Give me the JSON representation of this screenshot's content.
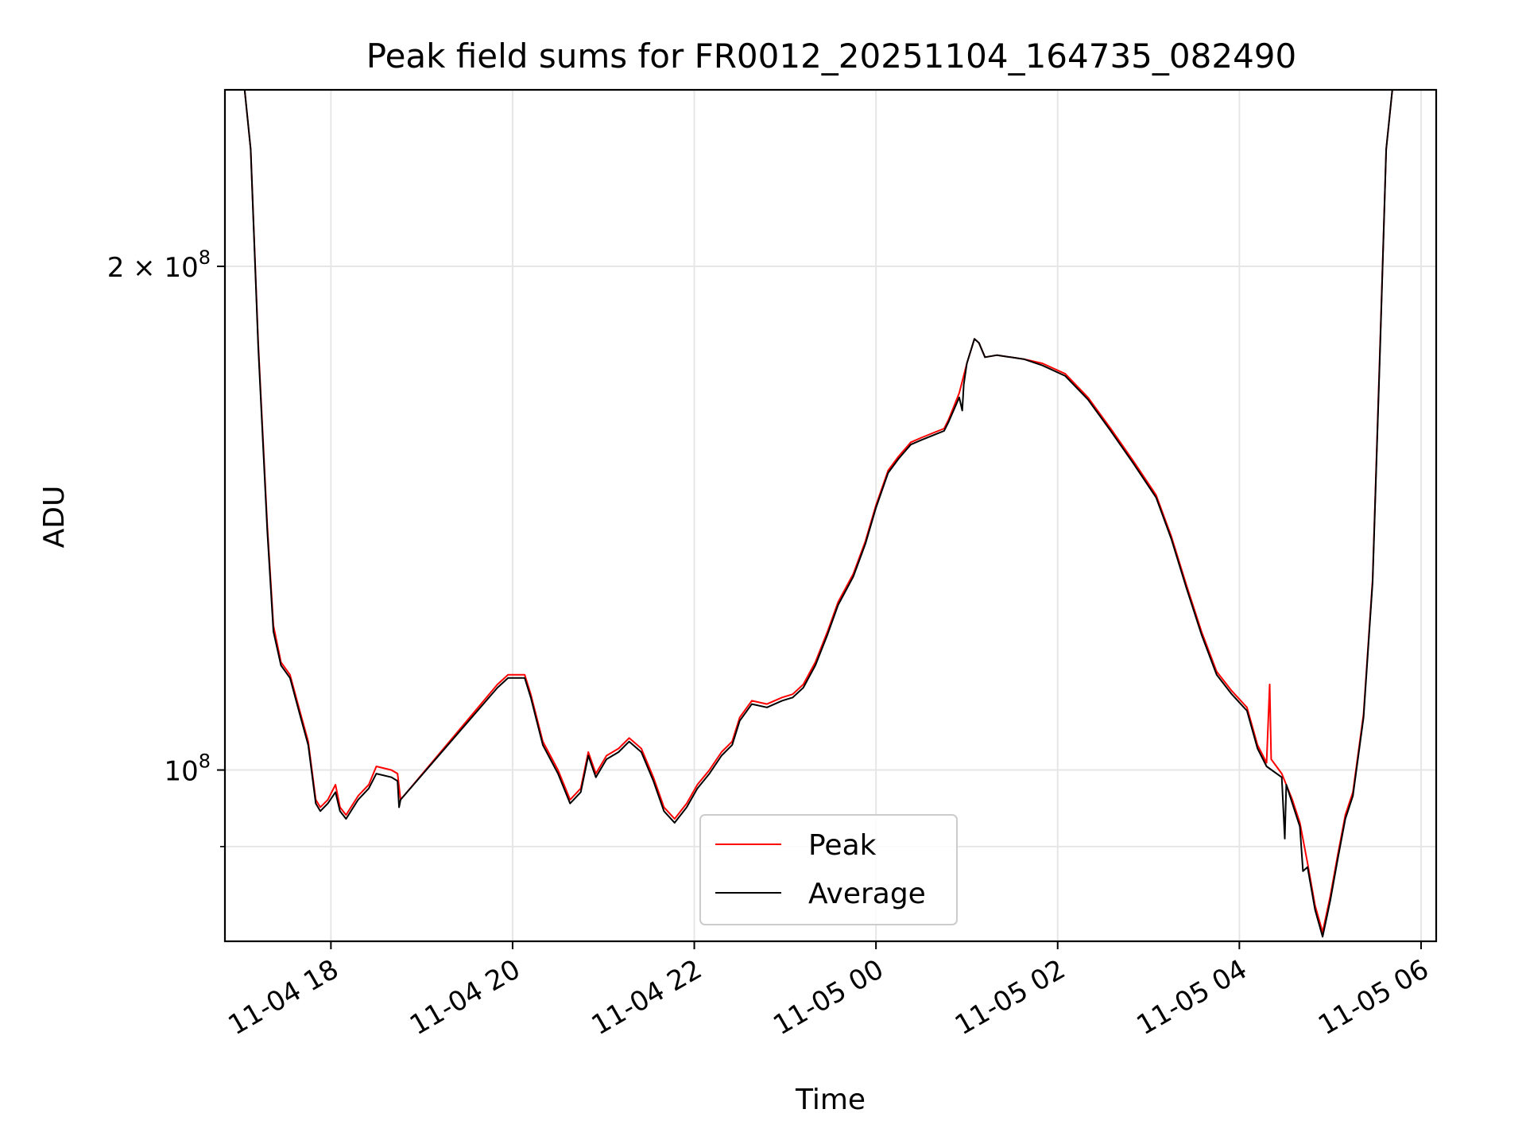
{
  "chart_data": {
    "type": "line",
    "title": "Peak field sums for FR0012_20251104_164735_082490",
    "xlabel": "Time",
    "ylabel": "ADU",
    "y_scale": "log",
    "ylim": [
      79000000,
      255000000
    ],
    "xlim": [
      "2025-11-04 16:50",
      "2025-11-05 06:10"
    ],
    "grid": true,
    "legend_position": "lower-center",
    "x_ticks": [
      {
        "t": "2025-11-04 18:00",
        "label": "11-04 18"
      },
      {
        "t": "2025-11-04 20:00",
        "label": "11-04 20"
      },
      {
        "t": "2025-11-04 22:00",
        "label": "11-04 22"
      },
      {
        "t": "2025-11-05 00:00",
        "label": "11-05 00"
      },
      {
        "t": "2025-11-05 02:00",
        "label": "11-05 02"
      },
      {
        "t": "2025-11-05 04:00",
        "label": "11-05 04"
      },
      {
        "t": "2025-11-05 06:00",
        "label": "11-05 06"
      }
    ],
    "y_ticks_major": [
      {
        "v": 100000000,
        "label_base": "10",
        "label_exp": "8"
      },
      {
        "v": 200000000,
        "label_base": "2 × 10",
        "label_exp": "8"
      }
    ],
    "y_ticks_minor": [
      90000000
    ],
    "series": [
      {
        "name": "Peak",
        "color": "#ff0000",
        "points": [
          [
            "2025-11-04 16:50",
            255000000
          ],
          [
            "2025-11-04 17:03",
            255000000
          ],
          [
            "2025-11-04 17:07",
            235000000
          ],
          [
            "2025-11-04 17:12",
            180000000
          ],
          [
            "2025-11-04 17:18",
            140000000
          ],
          [
            "2025-11-04 17:22",
            122000000
          ],
          [
            "2025-11-04 17:27",
            116000000
          ],
          [
            "2025-11-04 17:33",
            114000000
          ],
          [
            "2025-11-04 17:40",
            108000000
          ],
          [
            "2025-11-04 17:45",
            104000000
          ],
          [
            "2025-11-04 17:50",
            96000000
          ],
          [
            "2025-11-04 17:53",
            95000000
          ],
          [
            "2025-11-04 17:58",
            96000000
          ],
          [
            "2025-11-04 18:03",
            98000000
          ],
          [
            "2025-11-04 18:06",
            95000000
          ],
          [
            "2025-11-04 18:10",
            94000000
          ],
          [
            "2025-11-04 18:18",
            96500000
          ],
          [
            "2025-11-04 18:25",
            98000000
          ],
          [
            "2025-11-04 18:30",
            100500000
          ],
          [
            "2025-11-04 18:40",
            100000000
          ],
          [
            "2025-11-04 18:44",
            99500000
          ],
          [
            "2025-11-04 18:46",
            96000000
          ],
          [
            "2025-11-04 19:50",
            112500000
          ],
          [
            "2025-11-04 19:57",
            114000000
          ],
          [
            "2025-11-04 20:08",
            114000000
          ],
          [
            "2025-11-04 20:12",
            111000000
          ],
          [
            "2025-11-04 20:20",
            104000000
          ],
          [
            "2025-11-04 20:30",
            100000000
          ],
          [
            "2025-11-04 20:38",
            96000000
          ],
          [
            "2025-11-04 20:45",
            97500000
          ],
          [
            "2025-11-04 20:50",
            102500000
          ],
          [
            "2025-11-04 20:55",
            99500000
          ],
          [
            "2025-11-04 21:02",
            102000000
          ],
          [
            "2025-11-04 21:10",
            103000000
          ],
          [
            "2025-11-04 21:17",
            104500000
          ],
          [
            "2025-11-04 21:25",
            103000000
          ],
          [
            "2025-11-04 21:33",
            99000000
          ],
          [
            "2025-11-04 21:40",
            95000000
          ],
          [
            "2025-11-04 21:47",
            93500000
          ],
          [
            "2025-11-04 21:55",
            95500000
          ],
          [
            "2025-11-04 22:02",
            98000000
          ],
          [
            "2025-11-04 22:10",
            100000000
          ],
          [
            "2025-11-04 22:18",
            102500000
          ],
          [
            "2025-11-04 22:25",
            104000000
          ],
          [
            "2025-11-04 22:30",
            107500000
          ],
          [
            "2025-11-04 22:38",
            110000000
          ],
          [
            "2025-11-04 22:48",
            109500000
          ],
          [
            "2025-11-04 22:58",
            110500000
          ],
          [
            "2025-11-04 23:05",
            111000000
          ],
          [
            "2025-11-04 23:12",
            112500000
          ],
          [
            "2025-11-04 23:20",
            116000000
          ],
          [
            "2025-11-04 23:28",
            121000000
          ],
          [
            "2025-11-04 23:35",
            126000000
          ],
          [
            "2025-11-04 23:45",
            131000000
          ],
          [
            "2025-11-04 23:53",
            137000000
          ],
          [
            "2025-11-05 00:00",
            144000000
          ],
          [
            "2025-11-05 00:08",
            151000000
          ],
          [
            "2025-11-05 00:15",
            154000000
          ],
          [
            "2025-11-05 00:23",
            157000000
          ],
          [
            "2025-11-05 00:30",
            158000000
          ],
          [
            "2025-11-05 00:45",
            160000000
          ],
          [
            "2025-11-05 00:48",
            162000000
          ],
          [
            "2025-11-05 00:55",
            168000000
          ],
          [
            "2025-11-05 01:00",
            175000000
          ],
          [
            "2025-11-05 01:05",
            181000000
          ],
          [
            "2025-11-05 01:08",
            180000000
          ],
          [
            "2025-11-05 01:12",
            176500000
          ],
          [
            "2025-11-05 01:20",
            177000000
          ],
          [
            "2025-11-05 01:38",
            176000000
          ],
          [
            "2025-11-05 01:50",
            175000000
          ],
          [
            "2025-11-05 02:05",
            172500000
          ],
          [
            "2025-11-05 02:20",
            167000000
          ],
          [
            "2025-11-05 02:35",
            160000000
          ],
          [
            "2025-11-05 02:50",
            153000000
          ],
          [
            "2025-11-05 03:05",
            146000000
          ],
          [
            "2025-11-05 03:15",
            138000000
          ],
          [
            "2025-11-05 03:25",
            129000000
          ],
          [
            "2025-11-05 03:35",
            121000000
          ],
          [
            "2025-11-05 03:45",
            114500000
          ],
          [
            "2025-11-05 03:55",
            111500000
          ],
          [
            "2025-11-05 04:05",
            109000000
          ],
          [
            "2025-11-05 04:12",
            103500000
          ],
          [
            "2025-11-05 04:18",
            101000000
          ],
          [
            "2025-11-05 04:20",
            112500000
          ],
          [
            "2025-11-05 04:21",
            101500000
          ],
          [
            "2025-11-05 04:28",
            99500000
          ],
          [
            "2025-11-05 04:35",
            96000000
          ],
          [
            "2025-11-05 04:40",
            93000000
          ],
          [
            "2025-11-05 04:45",
            88000000
          ],
          [
            "2025-11-05 04:50",
            83000000
          ],
          [
            "2025-11-05 04:55",
            80000000
          ],
          [
            "2025-11-05 05:00",
            84000000
          ],
          [
            "2025-11-05 05:05",
            89000000
          ],
          [
            "2025-11-05 05:10",
            94000000
          ],
          [
            "2025-11-05 05:15",
            97000000
          ],
          [
            "2025-11-05 05:22",
            108000000
          ],
          [
            "2025-11-05 05:28",
            130000000
          ],
          [
            "2025-11-05 05:33",
            180000000
          ],
          [
            "2025-11-05 05:37",
            235000000
          ],
          [
            "2025-11-05 05:41",
            255000000
          ],
          [
            "2025-11-05 06:10",
            255000000
          ]
        ]
      },
      {
        "name": "Average",
        "color": "#000000",
        "points": [
          [
            "2025-11-04 16:50",
            255000000
          ],
          [
            "2025-11-04 17:03",
            255000000
          ],
          [
            "2025-11-04 17:07",
            235000000
          ],
          [
            "2025-11-04 17:12",
            179000000
          ],
          [
            "2025-11-04 17:18",
            139000000
          ],
          [
            "2025-11-04 17:22",
            121000000
          ],
          [
            "2025-11-04 17:27",
            115500000
          ],
          [
            "2025-11-04 17:33",
            113500000
          ],
          [
            "2025-11-04 17:40",
            107500000
          ],
          [
            "2025-11-04 17:45",
            103500000
          ],
          [
            "2025-11-04 17:50",
            95500000
          ],
          [
            "2025-11-04 17:53",
            94500000
          ],
          [
            "2025-11-04 17:58",
            95500000
          ],
          [
            "2025-11-04 18:03",
            97000000
          ],
          [
            "2025-11-04 18:06",
            94500000
          ],
          [
            "2025-11-04 18:10",
            93500000
          ],
          [
            "2025-11-04 18:18",
            96000000
          ],
          [
            "2025-11-04 18:25",
            97500000
          ],
          [
            "2025-11-04 18:30",
            99500000
          ],
          [
            "2025-11-04 18:40",
            99000000
          ],
          [
            "2025-11-04 18:44",
            98500000
          ],
          [
            "2025-11-04 18:45",
            95000000
          ],
          [
            "2025-11-04 18:46",
            96000000
          ],
          [
            "2025-11-04 19:50",
            112000000
          ],
          [
            "2025-11-04 19:57",
            113500000
          ],
          [
            "2025-11-04 20:08",
            113500000
          ],
          [
            "2025-11-04 20:12",
            110500000
          ],
          [
            "2025-11-04 20:20",
            103500000
          ],
          [
            "2025-11-04 20:30",
            99500000
          ],
          [
            "2025-11-04 20:38",
            95500000
          ],
          [
            "2025-11-04 20:45",
            97000000
          ],
          [
            "2025-11-04 20:50",
            102000000
          ],
          [
            "2025-11-04 20:55",
            99000000
          ],
          [
            "2025-11-04 21:02",
            101500000
          ],
          [
            "2025-11-04 21:10",
            102500000
          ],
          [
            "2025-11-04 21:17",
            104000000
          ],
          [
            "2025-11-04 21:25",
            102500000
          ],
          [
            "2025-11-04 21:33",
            98500000
          ],
          [
            "2025-11-04 21:40",
            94500000
          ],
          [
            "2025-11-04 21:47",
            93000000
          ],
          [
            "2025-11-04 21:55",
            95000000
          ],
          [
            "2025-11-04 22:02",
            97500000
          ],
          [
            "2025-11-04 22:10",
            99500000
          ],
          [
            "2025-11-04 22:18",
            102000000
          ],
          [
            "2025-11-04 22:25",
            103500000
          ],
          [
            "2025-11-04 22:30",
            107000000
          ],
          [
            "2025-11-04 22:38",
            109500000
          ],
          [
            "2025-11-04 22:48",
            109000000
          ],
          [
            "2025-11-04 22:58",
            110000000
          ],
          [
            "2025-11-04 23:05",
            110500000
          ],
          [
            "2025-11-04 23:12",
            112000000
          ],
          [
            "2025-11-04 23:20",
            115500000
          ],
          [
            "2025-11-04 23:28",
            120500000
          ],
          [
            "2025-11-04 23:35",
            125500000
          ],
          [
            "2025-11-04 23:45",
            130500000
          ],
          [
            "2025-11-04 23:53",
            136500000
          ],
          [
            "2025-11-05 00:00",
            143500000
          ],
          [
            "2025-11-05 00:08",
            150500000
          ],
          [
            "2025-11-05 00:15",
            153500000
          ],
          [
            "2025-11-05 00:23",
            156500000
          ],
          [
            "2025-11-05 00:30",
            157500000
          ],
          [
            "2025-11-05 00:45",
            159500000
          ],
          [
            "2025-11-05 00:48",
            161500000
          ],
          [
            "2025-11-05 00:55",
            167000000
          ],
          [
            "2025-11-05 00:57",
            164000000
          ],
          [
            "2025-11-05 00:58",
            170000000
          ],
          [
            "2025-11-05 01:00",
            175000000
          ],
          [
            "2025-11-05 01:05",
            181000000
          ],
          [
            "2025-11-05 01:08",
            180000000
          ],
          [
            "2025-11-05 01:12",
            176500000
          ],
          [
            "2025-11-05 01:20",
            177000000
          ],
          [
            "2025-11-05 01:38",
            176000000
          ],
          [
            "2025-11-05 01:50",
            174500000
          ],
          [
            "2025-11-05 02:05",
            172000000
          ],
          [
            "2025-11-05 02:20",
            166500000
          ],
          [
            "2025-11-05 02:35",
            159500000
          ],
          [
            "2025-11-05 02:50",
            152500000
          ],
          [
            "2025-11-05 03:05",
            145500000
          ],
          [
            "2025-11-05 03:15",
            137500000
          ],
          [
            "2025-11-05 03:25",
            128500000
          ],
          [
            "2025-11-05 03:35",
            120500000
          ],
          [
            "2025-11-05 03:45",
            114000000
          ],
          [
            "2025-11-05 03:55",
            111000000
          ],
          [
            "2025-11-05 04:05",
            108500000
          ],
          [
            "2025-11-05 04:12",
            103000000
          ],
          [
            "2025-11-05 04:18",
            100500000
          ],
          [
            "2025-11-05 04:28",
            99000000
          ],
          [
            "2025-11-05 04:30",
            91000000
          ],
          [
            "2025-11-05 04:31",
            98000000
          ],
          [
            "2025-11-05 04:35",
            95500000
          ],
          [
            "2025-11-05 04:40",
            92500000
          ],
          [
            "2025-11-05 04:42",
            87000000
          ],
          [
            "2025-11-05 04:45",
            87500000
          ],
          [
            "2025-11-05 04:50",
            82500000
          ],
          [
            "2025-11-05 04:55",
            79500000
          ],
          [
            "2025-11-05 05:00",
            83500000
          ],
          [
            "2025-11-05 05:05",
            88500000
          ],
          [
            "2025-11-05 05:10",
            93500000
          ],
          [
            "2025-11-05 05:15",
            96500000
          ],
          [
            "2025-11-05 05:22",
            107500000
          ],
          [
            "2025-11-05 05:28",
            129500000
          ],
          [
            "2025-11-05 05:33",
            179000000
          ],
          [
            "2025-11-05 05:37",
            235000000
          ],
          [
            "2025-11-05 05:41",
            255000000
          ],
          [
            "2025-11-05 06:10",
            255000000
          ]
        ]
      }
    ]
  }
}
